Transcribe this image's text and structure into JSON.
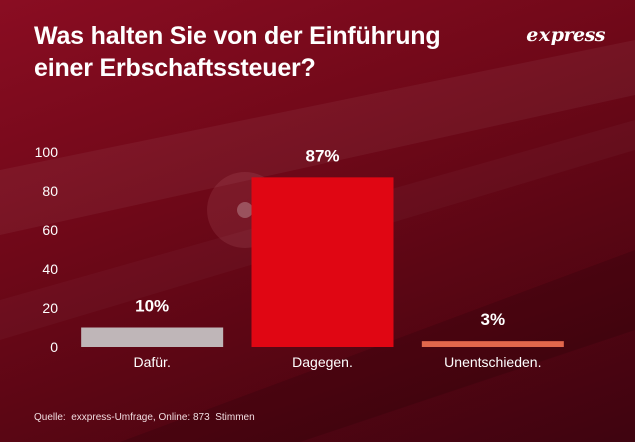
{
  "header": {
    "title_line1": "Was halten Sie von der Einführung",
    "title_line2": "einer Erbschaftssteuer?"
  },
  "logo": {
    "prefix": "e",
    "middle": "x",
    "suffix": "press"
  },
  "source": "Quelle:  exxpress-Umfrage, Online: 873  Stimmen",
  "colors": {
    "dafuer": "#bfb6b8",
    "dagegen": "#e00613",
    "unentschieden": "#e2674c"
  },
  "chart_data": {
    "type": "bar",
    "title": "Was halten Sie von der Einführung einer Erbschaftssteuer?",
    "xlabel": "",
    "ylabel": "",
    "ylim": [
      0,
      100
    ],
    "yticks": [
      0,
      20,
      40,
      60,
      80,
      100
    ],
    "categories": [
      "Dafür.",
      "Dagegen.",
      "Unentschieden."
    ],
    "values": [
      10,
      87,
      3
    ],
    "value_labels": [
      "10%",
      "87%",
      "3%"
    ],
    "bar_colors": [
      "#bfb6b8",
      "#e00613",
      "#e2674c"
    ],
    "grid": false,
    "legend": "none"
  }
}
